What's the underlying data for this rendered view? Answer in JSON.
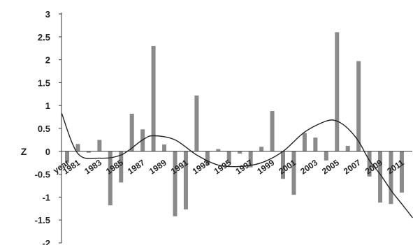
{
  "chart_data": {
    "type": "bar",
    "ylabel": "Z",
    "x_axis_first_label": "year",
    "ylim": [
      -2,
      3
    ],
    "yticks": [
      "3",
      "2.5",
      "2",
      "1.5",
      "1",
      "0.5",
      "0",
      "-0.5",
      "-1",
      "-1.5",
      "-2"
    ],
    "x_tick_labels": [
      "1981",
      "1983",
      "1985",
      "1987",
      "1989",
      "1991",
      "1993",
      "1995",
      "1997",
      "1999",
      "2001",
      "2003",
      "2005",
      "2007",
      "2009",
      "2011"
    ],
    "grid": false,
    "colors": {
      "bars": "#8a8a8a",
      "trend": "#222222",
      "axis": "#333333"
    },
    "series": [
      {
        "type": "bar",
        "x": [
          1980,
          1981,
          1982,
          1983,
          1984,
          1985,
          1986,
          1987,
          1988,
          1989,
          1990,
          1991,
          1992,
          1993,
          1994,
          1995,
          1996,
          1997,
          1998,
          1999,
          2000,
          2001,
          2002,
          2003,
          2004,
          2005,
          2006,
          2007,
          2008,
          2009,
          2010,
          2011
        ],
        "values": [
          -0.25,
          0.16,
          -0.03,
          0.25,
          -1.18,
          -0.68,
          0.82,
          0.48,
          2.3,
          0.15,
          -1.42,
          -1.27,
          1.22,
          -0.3,
          0.05,
          -0.25,
          -0.05,
          -0.35,
          0.1,
          0.88,
          -0.6,
          -0.95,
          0.4,
          0.3,
          -0.2,
          2.6,
          0.12,
          1.97,
          -0.55,
          -1.12,
          -1.15,
          -0.9
        ]
      },
      {
        "type": "line",
        "x": [
          1979.5,
          1981,
          1983,
          1985,
          1987,
          1988,
          1990,
          1992,
          1994,
          1996,
          1998,
          2000,
          2002,
          2004,
          2005,
          2006,
          2007,
          2008,
          2009,
          2010,
          2011,
          2012
        ],
        "values": [
          0.83,
          -0.05,
          -0.15,
          -0.08,
          0.25,
          0.34,
          0.25,
          -0.08,
          -0.3,
          -0.33,
          -0.25,
          0.0,
          0.42,
          0.66,
          0.66,
          0.5,
          0.22,
          -0.2,
          -0.5,
          -0.85,
          -1.15,
          -1.45
        ]
      }
    ]
  }
}
